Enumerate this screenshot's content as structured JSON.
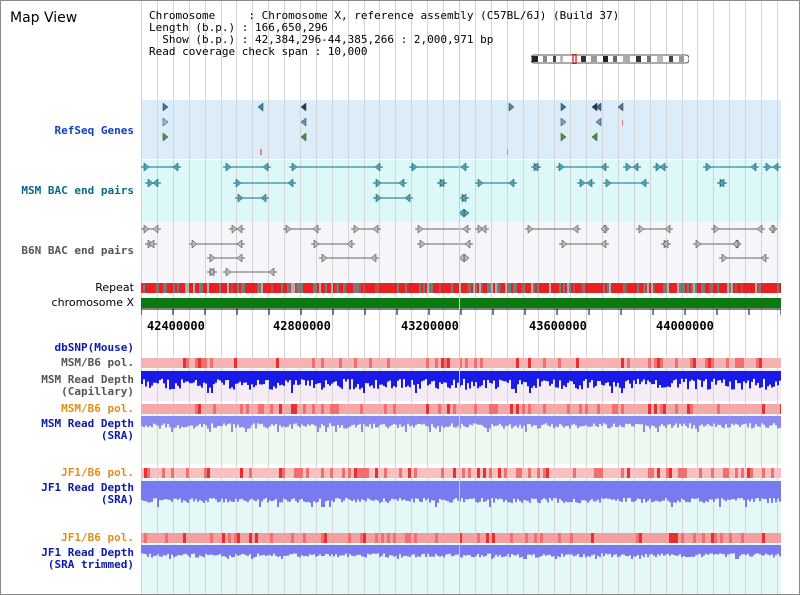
{
  "title": "Map View",
  "info": {
    "line1": "Chromosome     : Chromosome X, reference assembly (C57BL/6J) (Build 37)",
    "line2": "Length (b.p.) : 166,650,296",
    "line3": "  Show (b.p.) : 42,384,296-44,385,266 : 2,000,971 bp",
    "line4": "Read coverage check span : 10,000"
  },
  "labels": {
    "refseq": "RefSeq Genes",
    "msm_bac": "MSM BAC end pairs",
    "b6n_bac": "B6N BAC end pairs",
    "repeat": "Repeat",
    "chromosome": "chromosome X",
    "dbsnp": "dbSNP(Mouse)",
    "msm_b6_pol_1": "MSM/B6 pol.",
    "msm_read_depth_cap": "MSM Read Depth\n(Capillary)",
    "msm_b6_pol_2": "MSM/B6 pol.",
    "msm_read_depth_sra": "MSM Read Depth\n(SRA)",
    "jf1_b6_pol_1": "JF1/B6 pol.",
    "jf1_read_depth_sra": "JF1 Read Depth\n(SRA)",
    "jf1_b6_pol_2": "JF1/B6 pol.",
    "jf1_read_depth_trim": "JF1 Read Depth\n(SRA trimmed)"
  },
  "axis": {
    "ticks": [
      "42400000",
      "42800000",
      "43200000",
      "43600000",
      "44000000"
    ]
  },
  "colors": {
    "refseq_band": "#dcecf8",
    "msm_band": "#ddf8f8",
    "b6n_band": "#f2f6fa",
    "depth_band_pink": "#f8eef8",
    "depth_band_green": "#eef8ee",
    "depth_band_cyan": "#e4f8f8",
    "chromosome_bar": "#0a7a10",
    "capillary_depth": "#1a1ae8",
    "sra_depth": "#7a7af0",
    "pol_bar": "#f4a0a0"
  },
  "icons": [
    "ideogram-icon",
    "gene-arrow-icon"
  ]
}
